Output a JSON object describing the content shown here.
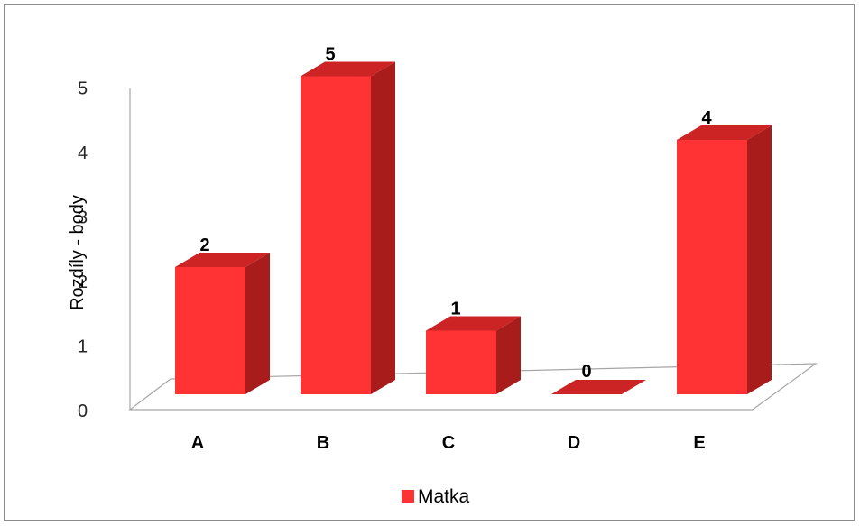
{
  "chart_data": {
    "type": "bar",
    "style": "3d-column",
    "categories": [
      "A",
      "B",
      "C",
      "D",
      "E"
    ],
    "series": [
      {
        "name": "Matka",
        "values": [
          2,
          5,
          1,
          0,
          4
        ],
        "color": "#ff3333"
      }
    ],
    "data_labels": [
      "2",
      "5",
      "1",
      "0",
      "4"
    ],
    "ylabel": "Rozdíly - body",
    "xlabel": "",
    "ylim": [
      0,
      5
    ],
    "yticks": [
      "0",
      "1",
      "2",
      "3",
      "4",
      "5"
    ],
    "grid": false,
    "legend": {
      "position": "bottom",
      "entries": [
        "Matka"
      ]
    },
    "colors": {
      "bar_front": "#ff3333",
      "bar_side": "#a81c1c",
      "bar_top": "#cc2424",
      "floor_line": "#a6a6a6"
    }
  }
}
